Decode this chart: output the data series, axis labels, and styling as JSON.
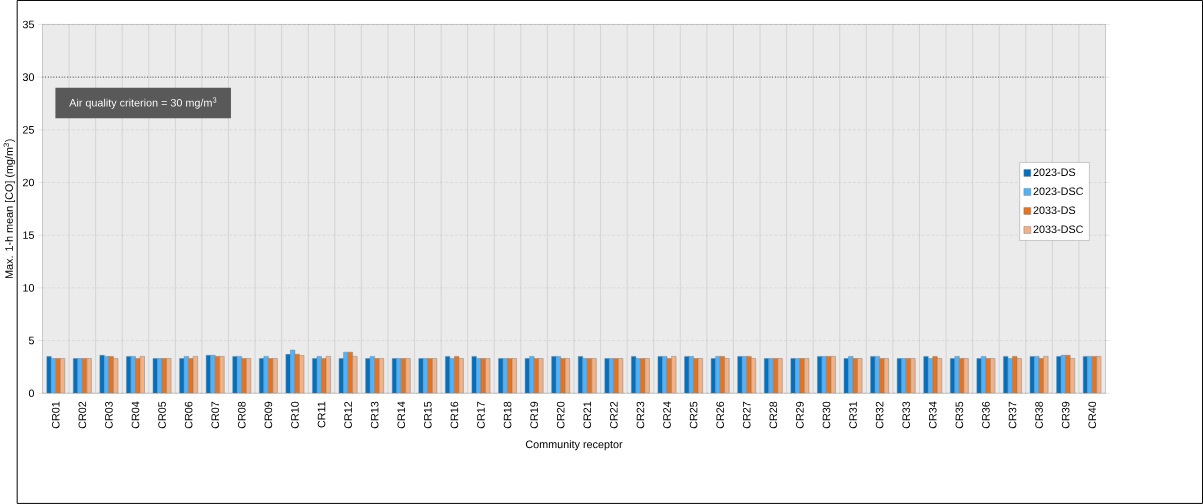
{
  "chart_data": {
    "type": "bar",
    "xlabel": "Community receptor",
    "ylabel": "Max. 1-h mean [CO] (mg/m$^{3}$)",
    "categories": [
      "CR01",
      "CR02",
      "CR03",
      "CR04",
      "CR05",
      "CR06",
      "CR07",
      "CR08",
      "CR09",
      "CR10",
      "CR11",
      "CR12",
      "CR13",
      "CR14",
      "CR15",
      "CR16",
      "CR17",
      "CR18",
      "CR19",
      "CR20",
      "CR21",
      "CR22",
      "CR23",
      "CR24",
      "CR25",
      "CR26",
      "CR27",
      "CR28",
      "CR29",
      "CR30",
      "CR31",
      "CR32",
      "CR33",
      "CR34",
      "CR35",
      "CR36",
      "CR37",
      "CR38",
      "CR39",
      "CR40"
    ],
    "series": [
      {
        "name": "2023-DS",
        "color": "#0070c0",
        "values": [
          3.5,
          3.3,
          3.6,
          3.5,
          3.3,
          3.3,
          3.6,
          3.5,
          3.3,
          3.7,
          3.3,
          3.3,
          3.3,
          3.3,
          3.3,
          3.5,
          3.5,
          3.3,
          3.3,
          3.5,
          3.5,
          3.3,
          3.5,
          3.5,
          3.5,
          3.3,
          3.5,
          3.3,
          3.3,
          3.5,
          3.3,
          3.5,
          3.3,
          3.5,
          3.3,
          3.3,
          3.5,
          3.5,
          3.5,
          3.5
        ]
      },
      {
        "name": "2023-DSC",
        "color": "#4db3ff",
        "values": [
          3.3,
          3.3,
          3.5,
          3.5,
          3.3,
          3.5,
          3.6,
          3.5,
          3.5,
          4.1,
          3.5,
          3.9,
          3.5,
          3.3,
          3.3,
          3.3,
          3.3,
          3.3,
          3.5,
          3.5,
          3.3,
          3.3,
          3.3,
          3.5,
          3.5,
          3.5,
          3.5,
          3.3,
          3.3,
          3.5,
          3.5,
          3.5,
          3.3,
          3.3,
          3.5,
          3.5,
          3.3,
          3.5,
          3.6,
          3.5
        ]
      },
      {
        "name": "2033-DS",
        "color": "#e8731e",
        "values": [
          3.3,
          3.3,
          3.5,
          3.3,
          3.3,
          3.3,
          3.5,
          3.3,
          3.3,
          3.7,
          3.3,
          3.9,
          3.3,
          3.3,
          3.3,
          3.5,
          3.3,
          3.3,
          3.3,
          3.3,
          3.3,
          3.3,
          3.3,
          3.3,
          3.3,
          3.5,
          3.5,
          3.3,
          3.3,
          3.5,
          3.3,
          3.3,
          3.3,
          3.5,
          3.3,
          3.3,
          3.5,
          3.3,
          3.6,
          3.5
        ]
      },
      {
        "name": "2033-DSC",
        "color": "#f4b183",
        "values": [
          3.3,
          3.3,
          3.3,
          3.5,
          3.3,
          3.5,
          3.5,
          3.3,
          3.3,
          3.6,
          3.5,
          3.5,
          3.3,
          3.3,
          3.3,
          3.3,
          3.3,
          3.3,
          3.3,
          3.3,
          3.3,
          3.3,
          3.3,
          3.5,
          3.3,
          3.3,
          3.3,
          3.3,
          3.3,
          3.5,
          3.3,
          3.3,
          3.3,
          3.3,
          3.3,
          3.3,
          3.3,
          3.5,
          3.3,
          3.5
        ]
      }
    ],
    "ylim": [
      0,
      35
    ],
    "yticks": [
      0,
      5,
      10,
      15,
      20,
      25,
      30,
      35
    ],
    "grid": true,
    "legend": "right",
    "ref_lines": [
      {
        "axis": "y",
        "value": 30,
        "label": "Air quality criterion = 30 mg/m$^{3}$",
        "color": "#000000",
        "line_style": "dotted"
      }
    ]
  }
}
